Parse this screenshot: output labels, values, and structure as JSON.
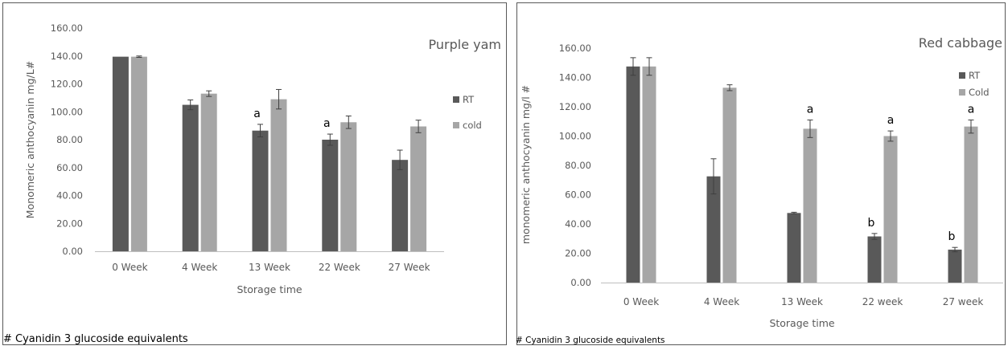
{
  "chart_data": [
    {
      "type": "bar",
      "title": "Purple yam",
      "xlabel": "Storage time",
      "ylabel": "Monomeric anthocyanin mg/L#",
      "ylim": [
        0,
        160
      ],
      "yticks": [
        "0.00",
        "20.00",
        "40.00",
        "60.00",
        "80.00",
        "100.00",
        "120.00",
        "140.00",
        "160.00"
      ],
      "categories": [
        "0 Week",
        "4 Week",
        "13 Week",
        "22 Week",
        "27 Week"
      ],
      "series": [
        {
          "name": "RT",
          "color": "#595959",
          "values": [
            139.5,
            105,
            86.5,
            80,
            65.5
          ],
          "errors": [
            0,
            3.5,
            4.5,
            4,
            7
          ]
        },
        {
          "name": "cold",
          "color": "#a6a6a6",
          "values": [
            139.5,
            113,
            109,
            92.5,
            89.5
          ],
          "errors": [
            0.5,
            2,
            7,
            4.5,
            4.5
          ]
        }
      ],
      "annotations": [
        {
          "series": 0,
          "index": 2,
          "text": "a"
        },
        {
          "series": 0,
          "index": 3,
          "text": "a"
        }
      ],
      "footnote": "# Cyanidin 3 glucoside equivalents",
      "grid": false,
      "legend": "right"
    },
    {
      "type": "bar",
      "title": "Red cabbage",
      "xlabel": "Storage time",
      "ylabel": "monomeric anthocyanin mg/l #",
      "ylim": [
        0,
        160
      ],
      "yticks": [
        "0.00",
        "20.00",
        "40.00",
        "60.00",
        "80.00",
        "100.00",
        "120.00",
        "140.00",
        "160.00"
      ],
      "categories": [
        "0 Week",
        "4 Week",
        "13 Week",
        "22 week",
        "27 week"
      ],
      "series": [
        {
          "name": "RT",
          "color": "#595959",
          "values": [
            147.5,
            72.5,
            47.5,
            31.5,
            22.5
          ],
          "errors": [
            6,
            12,
            0.5,
            2,
            1.5
          ]
        },
        {
          "name": "Cold",
          "color": "#a6a6a6",
          "values": [
            147.5,
            133,
            105,
            100,
            106.5
          ],
          "errors": [
            6,
            2,
            6,
            3.5,
            4.5
          ]
        }
      ],
      "annotations": [
        {
          "series": 1,
          "index": 2,
          "text": "a"
        },
        {
          "series": 1,
          "index": 3,
          "text": "a"
        },
        {
          "series": 1,
          "index": 4,
          "text": "a"
        },
        {
          "series": 0,
          "index": 3,
          "text": "b"
        },
        {
          "series": 0,
          "index": 4,
          "text": "b"
        }
      ],
      "footnote": "# Cyanidin 3 glucoside equivalents",
      "grid": false,
      "legend": "right"
    }
  ]
}
